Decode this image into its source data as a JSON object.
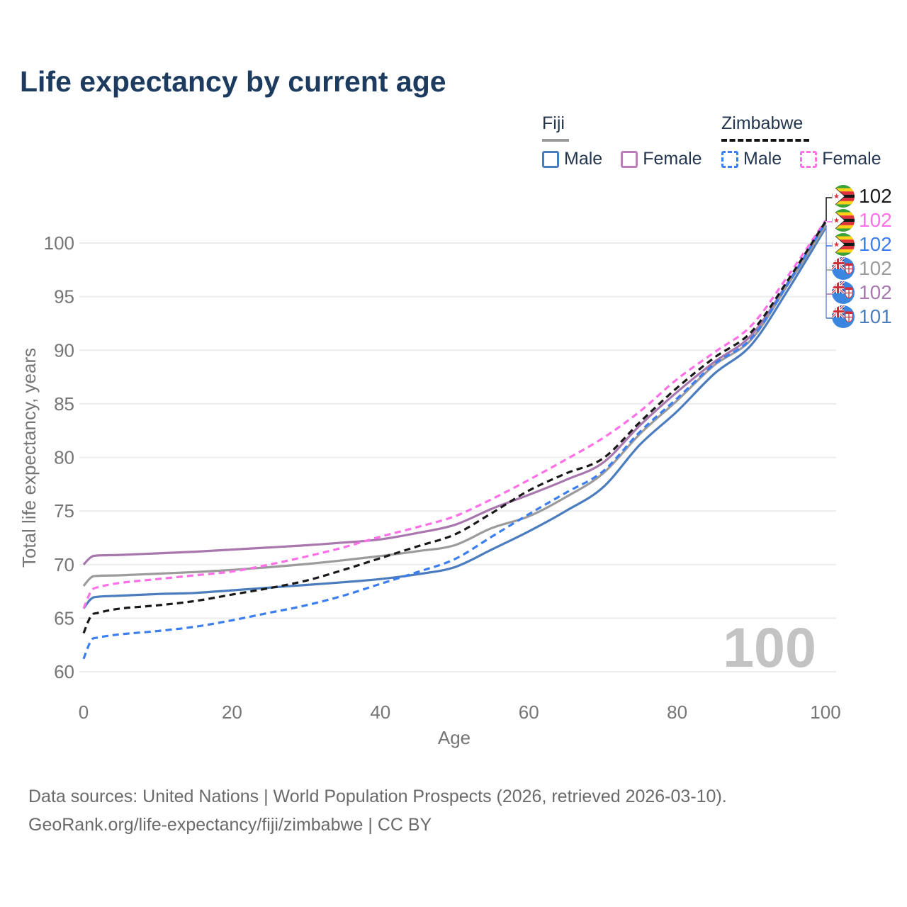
{
  "title": "Life expectancy by current age",
  "legend": {
    "groups": [
      {
        "label": "Fiji",
        "line_style": "solid",
        "underline_color": "#9a9a9a",
        "items": [
          {
            "label": "Male",
            "color": "#4b7cbe"
          },
          {
            "label": "Female",
            "color": "#bd7cba"
          }
        ]
      },
      {
        "label": "Zimbabwe",
        "line_style": "dashed",
        "underline_color": "#141414",
        "items": [
          {
            "label": "Male",
            "color": "#3b7ef0"
          },
          {
            "label": "Female",
            "color": "#ff6fe8"
          }
        ]
      }
    ]
  },
  "chart_data": {
    "type": "line",
    "title": "Life expectancy by current age",
    "xlabel": "Age",
    "ylabel": "Total life expectancy, years",
    "xlim": [
      0,
      100
    ],
    "ylim": [
      60,
      102
    ],
    "xticks": [
      0,
      20,
      40,
      60,
      80,
      100
    ],
    "yticks": [
      60,
      65,
      70,
      75,
      80,
      85,
      90,
      95,
      100
    ],
    "grid": "horizontal",
    "legend_position": "top-right",
    "x": [
      0,
      1,
      2,
      5,
      10,
      15,
      20,
      25,
      30,
      35,
      40,
      45,
      50,
      55,
      60,
      65,
      70,
      75,
      80,
      85,
      90,
      95,
      100
    ],
    "series": [
      {
        "name": "Fiji Female",
        "key": "fiji-female",
        "color": "#a877ae",
        "dashed": false,
        "values": [
          70.0,
          70.7,
          70.85,
          70.9,
          71.05,
          71.2,
          71.4,
          71.6,
          71.8,
          72.05,
          72.35,
          72.95,
          73.7,
          75.2,
          76.5,
          77.9,
          79.5,
          83.0,
          86.1,
          88.9,
          91.4,
          96.4,
          101.8
        ]
      },
      {
        "name": "Fiji Male",
        "key": "fiji-male",
        "color": "#4b7cbe",
        "dashed": false,
        "values": [
          65.9,
          66.8,
          67.0,
          67.1,
          67.25,
          67.35,
          67.6,
          67.85,
          68.1,
          68.35,
          68.65,
          69.1,
          69.75,
          71.4,
          73.1,
          75.0,
          77.2,
          81.2,
          84.3,
          87.8,
          90.5,
          95.7,
          101.4
        ]
      },
      {
        "name": "Fiji Both sexes",
        "key": "fiji-both",
        "color": "#9b9b9b",
        "dashed": false,
        "values": [
          68.0,
          68.8,
          68.95,
          69.0,
          69.15,
          69.3,
          69.5,
          69.75,
          70.05,
          70.4,
          70.8,
          71.25,
          71.8,
          73.4,
          74.5,
          76.3,
          78.5,
          82.2,
          85.3,
          88.6,
          91.0,
          96.2,
          101.6
        ]
      },
      {
        "name": "Zimbabwe Female",
        "key": "zim-female",
        "color": "#ff6fe8",
        "dashed": true,
        "values": [
          65.9,
          67.5,
          67.9,
          68.3,
          68.65,
          69.0,
          69.35,
          70.0,
          70.75,
          71.6,
          72.6,
          73.5,
          74.5,
          76.1,
          77.9,
          79.8,
          81.8,
          84.3,
          87.3,
          89.8,
          92.3,
          97.0,
          102.1
        ]
      },
      {
        "name": "Zimbabwe Male",
        "key": "zim-male",
        "color": "#3b7ef0",
        "dashed": true,
        "values": [
          61.2,
          62.9,
          63.2,
          63.5,
          63.8,
          64.2,
          64.8,
          65.5,
          66.2,
          67.1,
          68.2,
          69.3,
          70.5,
          72.6,
          74.7,
          76.7,
          78.7,
          82.4,
          85.5,
          88.7,
          91.1,
          96.3,
          101.9
        ]
      },
      {
        "name": "Zimbabwe Both sexes",
        "key": "zim-both",
        "color": "#191919",
        "dashed": true,
        "values": [
          63.6,
          65.2,
          65.5,
          65.9,
          66.2,
          66.6,
          67.2,
          67.8,
          68.5,
          69.5,
          70.6,
          71.7,
          72.8,
          74.8,
          76.9,
          78.5,
          79.9,
          83.3,
          86.5,
          89.3,
          91.7,
          96.6,
          102.0
        ]
      }
    ],
    "end_labels": [
      {
        "value": "102",
        "color": "#191919",
        "flag": "zimbabwe",
        "series": "Zimbabwe Both sexes"
      },
      {
        "value": "102",
        "color": "#ff6fe8",
        "flag": "zimbabwe",
        "series": "Zimbabwe Female"
      },
      {
        "value": "102",
        "color": "#3b7ef0",
        "flag": "zimbabwe",
        "series": "Zimbabwe Male"
      },
      {
        "value": "102",
        "color": "#9b9b9b",
        "flag": "fiji",
        "series": "Fiji Both sexes"
      },
      {
        "value": "102",
        "color": "#a877ae",
        "flag": "fiji",
        "series": "Fiji Female"
      },
      {
        "value": "101",
        "color": "#4b7cbe",
        "flag": "fiji",
        "series": "Fiji Male"
      }
    ],
    "watermark": "100",
    "colors": {
      "grid": "#ececec",
      "tick_text": "#757575",
      "watermark": "#c3c3c3"
    }
  },
  "footer": {
    "line1": "Data sources: United Nations | World Population Prospects (2026, retrieved 2026-03-10).",
    "line2": "GeoRank.org/life-expectancy/fiji/zimbabwe | CC BY"
  }
}
